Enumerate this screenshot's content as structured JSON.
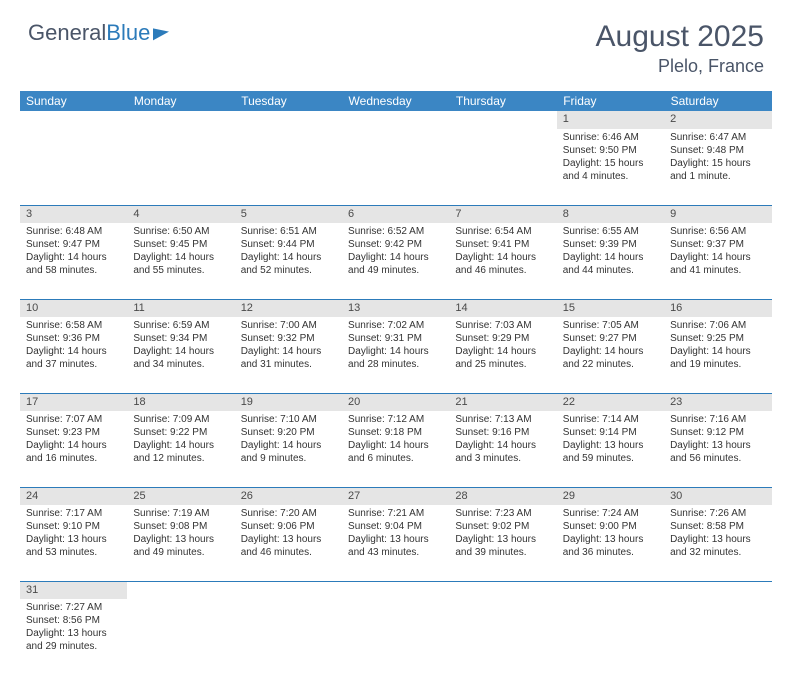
{
  "brand": {
    "part1": "General",
    "part2": "Blue"
  },
  "title": "August 2025",
  "location": "Plelo, France",
  "colors": {
    "header_bg": "#3b86c4",
    "daynum_bg": "#e5e5e5",
    "row_divider": "#2c7bba",
    "text": "#333333",
    "title_text": "#4a5568"
  },
  "daysOfWeek": [
    "Sunday",
    "Monday",
    "Tuesday",
    "Wednesday",
    "Thursday",
    "Friday",
    "Saturday"
  ],
  "weeks": [
    {
      "nums": [
        "",
        "",
        "",
        "",
        "",
        "1",
        "2"
      ],
      "cells": [
        null,
        null,
        null,
        null,
        null,
        {
          "sunrise": "Sunrise: 6:46 AM",
          "sunset": "Sunset: 9:50 PM",
          "daylight": "Daylight: 15 hours and 4 minutes."
        },
        {
          "sunrise": "Sunrise: 6:47 AM",
          "sunset": "Sunset: 9:48 PM",
          "daylight": "Daylight: 15 hours and 1 minute."
        }
      ]
    },
    {
      "nums": [
        "3",
        "4",
        "5",
        "6",
        "7",
        "8",
        "9"
      ],
      "cells": [
        {
          "sunrise": "Sunrise: 6:48 AM",
          "sunset": "Sunset: 9:47 PM",
          "daylight": "Daylight: 14 hours and 58 minutes."
        },
        {
          "sunrise": "Sunrise: 6:50 AM",
          "sunset": "Sunset: 9:45 PM",
          "daylight": "Daylight: 14 hours and 55 minutes."
        },
        {
          "sunrise": "Sunrise: 6:51 AM",
          "sunset": "Sunset: 9:44 PM",
          "daylight": "Daylight: 14 hours and 52 minutes."
        },
        {
          "sunrise": "Sunrise: 6:52 AM",
          "sunset": "Sunset: 9:42 PM",
          "daylight": "Daylight: 14 hours and 49 minutes."
        },
        {
          "sunrise": "Sunrise: 6:54 AM",
          "sunset": "Sunset: 9:41 PM",
          "daylight": "Daylight: 14 hours and 46 minutes."
        },
        {
          "sunrise": "Sunrise: 6:55 AM",
          "sunset": "Sunset: 9:39 PM",
          "daylight": "Daylight: 14 hours and 44 minutes."
        },
        {
          "sunrise": "Sunrise: 6:56 AM",
          "sunset": "Sunset: 9:37 PM",
          "daylight": "Daylight: 14 hours and 41 minutes."
        }
      ]
    },
    {
      "nums": [
        "10",
        "11",
        "12",
        "13",
        "14",
        "15",
        "16"
      ],
      "cells": [
        {
          "sunrise": "Sunrise: 6:58 AM",
          "sunset": "Sunset: 9:36 PM",
          "daylight": "Daylight: 14 hours and 37 minutes."
        },
        {
          "sunrise": "Sunrise: 6:59 AM",
          "sunset": "Sunset: 9:34 PM",
          "daylight": "Daylight: 14 hours and 34 minutes."
        },
        {
          "sunrise": "Sunrise: 7:00 AM",
          "sunset": "Sunset: 9:32 PM",
          "daylight": "Daylight: 14 hours and 31 minutes."
        },
        {
          "sunrise": "Sunrise: 7:02 AM",
          "sunset": "Sunset: 9:31 PM",
          "daylight": "Daylight: 14 hours and 28 minutes."
        },
        {
          "sunrise": "Sunrise: 7:03 AM",
          "sunset": "Sunset: 9:29 PM",
          "daylight": "Daylight: 14 hours and 25 minutes."
        },
        {
          "sunrise": "Sunrise: 7:05 AM",
          "sunset": "Sunset: 9:27 PM",
          "daylight": "Daylight: 14 hours and 22 minutes."
        },
        {
          "sunrise": "Sunrise: 7:06 AM",
          "sunset": "Sunset: 9:25 PM",
          "daylight": "Daylight: 14 hours and 19 minutes."
        }
      ]
    },
    {
      "nums": [
        "17",
        "18",
        "19",
        "20",
        "21",
        "22",
        "23"
      ],
      "cells": [
        {
          "sunrise": "Sunrise: 7:07 AM",
          "sunset": "Sunset: 9:23 PM",
          "daylight": "Daylight: 14 hours and 16 minutes."
        },
        {
          "sunrise": "Sunrise: 7:09 AM",
          "sunset": "Sunset: 9:22 PM",
          "daylight": "Daylight: 14 hours and 12 minutes."
        },
        {
          "sunrise": "Sunrise: 7:10 AM",
          "sunset": "Sunset: 9:20 PM",
          "daylight": "Daylight: 14 hours and 9 minutes."
        },
        {
          "sunrise": "Sunrise: 7:12 AM",
          "sunset": "Sunset: 9:18 PM",
          "daylight": "Daylight: 14 hours and 6 minutes."
        },
        {
          "sunrise": "Sunrise: 7:13 AM",
          "sunset": "Sunset: 9:16 PM",
          "daylight": "Daylight: 14 hours and 3 minutes."
        },
        {
          "sunrise": "Sunrise: 7:14 AM",
          "sunset": "Sunset: 9:14 PM",
          "daylight": "Daylight: 13 hours and 59 minutes."
        },
        {
          "sunrise": "Sunrise: 7:16 AM",
          "sunset": "Sunset: 9:12 PM",
          "daylight": "Daylight: 13 hours and 56 minutes."
        }
      ]
    },
    {
      "nums": [
        "24",
        "25",
        "26",
        "27",
        "28",
        "29",
        "30"
      ],
      "cells": [
        {
          "sunrise": "Sunrise: 7:17 AM",
          "sunset": "Sunset: 9:10 PM",
          "daylight": "Daylight: 13 hours and 53 minutes."
        },
        {
          "sunrise": "Sunrise: 7:19 AM",
          "sunset": "Sunset: 9:08 PM",
          "daylight": "Daylight: 13 hours and 49 minutes."
        },
        {
          "sunrise": "Sunrise: 7:20 AM",
          "sunset": "Sunset: 9:06 PM",
          "daylight": "Daylight: 13 hours and 46 minutes."
        },
        {
          "sunrise": "Sunrise: 7:21 AM",
          "sunset": "Sunset: 9:04 PM",
          "daylight": "Daylight: 13 hours and 43 minutes."
        },
        {
          "sunrise": "Sunrise: 7:23 AM",
          "sunset": "Sunset: 9:02 PM",
          "daylight": "Daylight: 13 hours and 39 minutes."
        },
        {
          "sunrise": "Sunrise: 7:24 AM",
          "sunset": "Sunset: 9:00 PM",
          "daylight": "Daylight: 13 hours and 36 minutes."
        },
        {
          "sunrise": "Sunrise: 7:26 AM",
          "sunset": "Sunset: 8:58 PM",
          "daylight": "Daylight: 13 hours and 32 minutes."
        }
      ]
    },
    {
      "nums": [
        "31",
        "",
        "",
        "",
        "",
        "",
        ""
      ],
      "cells": [
        {
          "sunrise": "Sunrise: 7:27 AM",
          "sunset": "Sunset: 8:56 PM",
          "daylight": "Daylight: 13 hours and 29 minutes."
        },
        null,
        null,
        null,
        null,
        null,
        null
      ]
    }
  ]
}
